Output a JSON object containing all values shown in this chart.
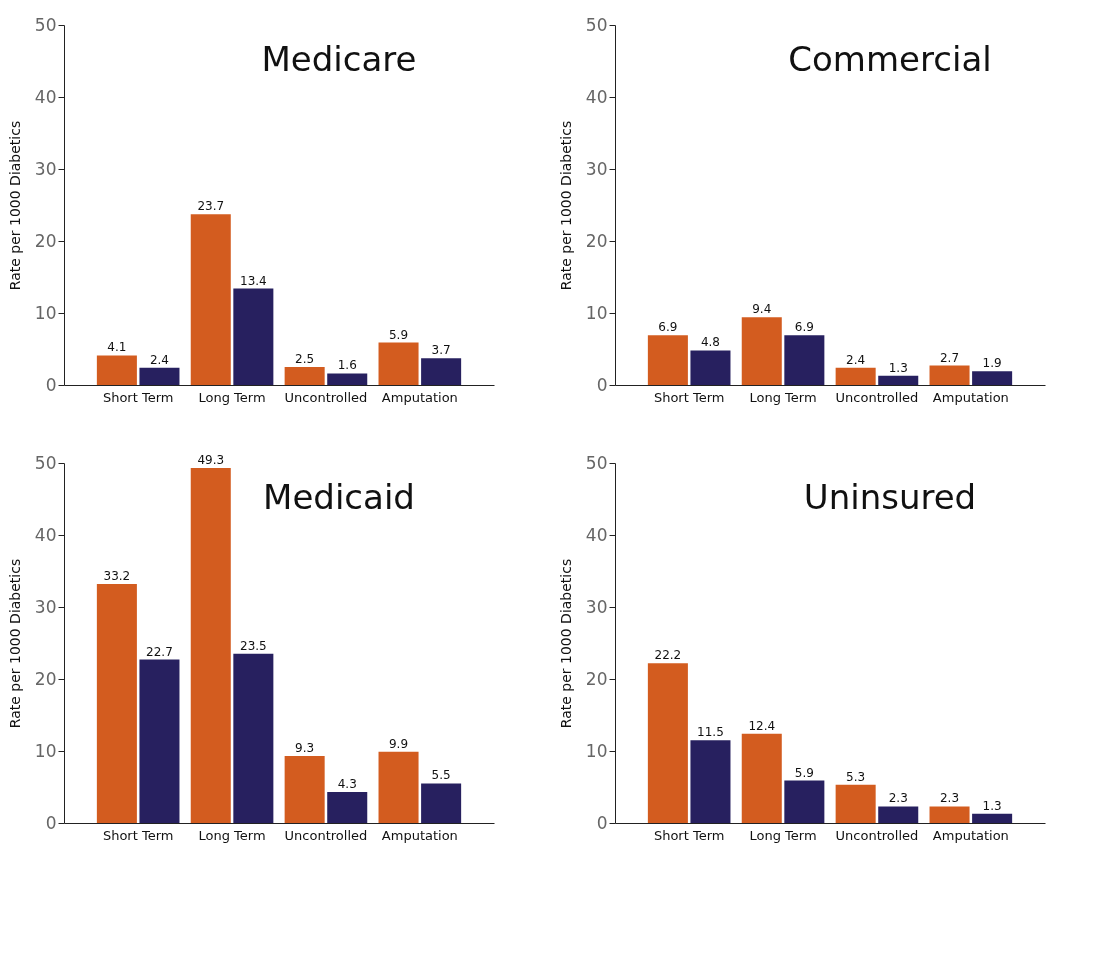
{
  "chart_data": [
    {
      "type": "bar",
      "title": "Medicare",
      "ylabel": "Rate per 1000 Diabetics",
      "categories": [
        "Short Term",
        "Long Term",
        "Uncontrolled",
        "Amputation"
      ],
      "series": [
        {
          "color": "#d35c1f",
          "values": [
            4.1,
            23.7,
            2.5,
            5.9
          ]
        },
        {
          "color": "#27205f",
          "values": [
            2.4,
            13.4,
            1.6,
            3.7
          ]
        }
      ],
      "ylim": [
        0,
        50
      ],
      "yticks": [
        0,
        10,
        20,
        30,
        40,
        50
      ],
      "data_labels": true,
      "grid": false,
      "legend": false
    },
    {
      "type": "bar",
      "title": "Commercial",
      "ylabel": "Rate per 1000 Diabetics",
      "categories": [
        "Short Term",
        "Long Term",
        "Uncontrolled",
        "Amputation"
      ],
      "series": [
        {
          "color": "#d35c1f",
          "values": [
            6.9,
            9.4,
            2.4,
            2.7
          ]
        },
        {
          "color": "#27205f",
          "values": [
            4.8,
            6.9,
            1.3,
            1.9
          ]
        }
      ],
      "ylim": [
        0,
        50
      ],
      "yticks": [
        0,
        10,
        20,
        30,
        40,
        50
      ],
      "data_labels": true,
      "grid": false,
      "legend": false
    },
    {
      "type": "bar",
      "title": "Medicaid",
      "ylabel": "Rate per 1000 Diabetics",
      "categories": [
        "Short Term",
        "Long Term",
        "Uncontrolled",
        "Amputation"
      ],
      "series": [
        {
          "color": "#d35c1f",
          "values": [
            33.2,
            49.3,
            9.3,
            9.9
          ]
        },
        {
          "color": "#27205f",
          "values": [
            22.7,
            23.5,
            4.3,
            5.5
          ]
        }
      ],
      "ylim": [
        0,
        50
      ],
      "yticks": [
        0,
        10,
        20,
        30,
        40,
        50
      ],
      "data_labels": true,
      "grid": false,
      "legend": false
    },
    {
      "type": "bar",
      "title": "Uninsured",
      "ylabel": "Rate per 1000 Diabetics",
      "categories": [
        "Short Term",
        "Long Term",
        "Uncontrolled",
        "Amputation"
      ],
      "series": [
        {
          "color": "#d35c1f",
          "values": [
            22.2,
            12.4,
            5.3,
            2.3
          ]
        },
        {
          "color": "#27205f",
          "values": [
            11.5,
            5.9,
            2.3,
            1.3
          ]
        }
      ],
      "ylim": [
        0,
        50
      ],
      "yticks": [
        0,
        10,
        20,
        30,
        40,
        50
      ],
      "data_labels": true,
      "grid": false,
      "legend": false
    }
  ]
}
